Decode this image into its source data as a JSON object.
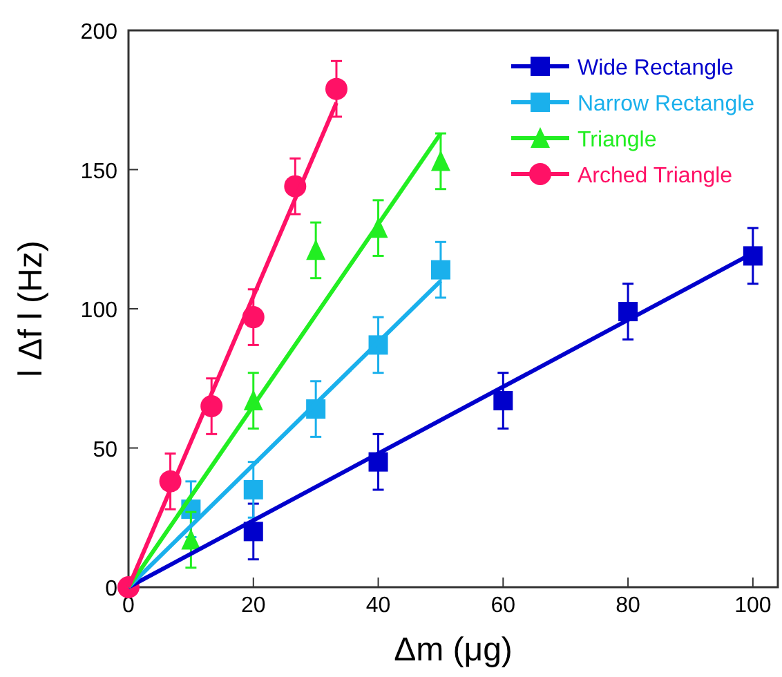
{
  "chart_data": {
    "type": "scatter",
    "xlabel": "Δm (μg)",
    "ylabel": "l Δf l (Hz)",
    "xlim": [
      0,
      104
    ],
    "ylim": [
      0,
      200
    ],
    "xticks": [
      0,
      20,
      40,
      60,
      80,
      100
    ],
    "yticks": [
      0,
      50,
      100,
      150,
      200
    ],
    "legend": "top right",
    "grid": false,
    "series": [
      {
        "name": "Wide Rectangle",
        "color": "#0000cc",
        "marker": "square",
        "x": [
          20,
          40,
          60,
          80,
          100
        ],
        "values": [
          20,
          45,
          67,
          99,
          119
        ],
        "errors": [
          10,
          10,
          10,
          10,
          10
        ]
      },
      {
        "name": "Narrow Rectangle",
        "color": "#1ab0ec",
        "marker": "square",
        "x": [
          10,
          20,
          30,
          40,
          50
        ],
        "values": [
          28,
          35,
          64,
          87,
          114
        ],
        "errors": [
          10,
          10,
          10,
          10,
          10
        ]
      },
      {
        "name": "Triangle",
        "color": "#22ee22",
        "marker": "triangle",
        "x": [
          10,
          20,
          30,
          40,
          50
        ],
        "values": [
          17,
          67,
          121,
          129,
          153
        ],
        "errors": [
          10,
          10,
          10,
          10,
          10
        ]
      },
      {
        "name": "Arched Triangle",
        "color": "#ff1166",
        "marker": "circle",
        "x": [
          0,
          6.7,
          13.3,
          20,
          26.7,
          33.3
        ],
        "values": [
          0,
          38,
          65,
          97,
          144,
          179
        ],
        "errors": [
          null,
          10,
          10,
          10,
          10,
          10
        ]
      },
      {
        "type": "line",
        "color": "#0000cc",
        "x": [
          0,
          100
        ],
        "values": [
          0,
          120
        ]
      },
      {
        "type": "line",
        "color": "#1ab0ec",
        "x": [
          0,
          50
        ],
        "values": [
          0,
          110
        ]
      },
      {
        "type": "line",
        "color": "#22ee22",
        "x": [
          0,
          50
        ],
        "values": [
          0,
          163
        ]
      },
      {
        "type": "line",
        "color": "#ff1166",
        "x": [
          0,
          33.3
        ],
        "values": [
          0,
          174
        ]
      }
    ]
  }
}
